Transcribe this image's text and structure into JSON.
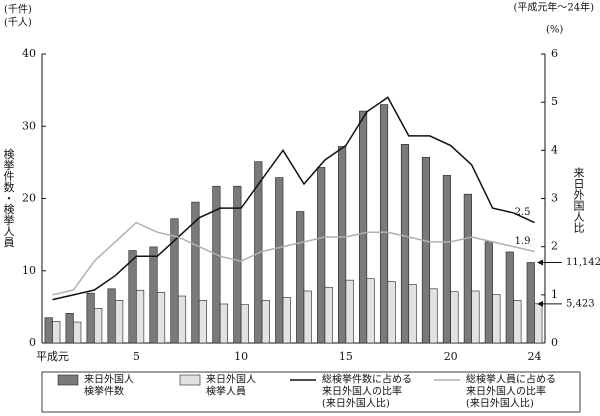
{
  "chart_data": {
    "type": "bar",
    "period_note": "(平成元年～24年)",
    "y_unit_labels": [
      "(千件)",
      "(千人)"
    ],
    "y2_unit_label": "(%)",
    "ylabel": "検挙件数・検挙人員",
    "y2label": "来日外国人比",
    "x": [
      1,
      2,
      3,
      4,
      5,
      6,
      7,
      8,
      9,
      10,
      11,
      12,
      13,
      14,
      15,
      16,
      17,
      18,
      19,
      20,
      21,
      22,
      23,
      24
    ],
    "xlim": [
      0.5,
      24.5
    ],
    "xticks": [
      {
        "value": 1,
        "label": "平成元"
      },
      5,
      10,
      15,
      20,
      24
    ],
    "ylim": [
      0,
      40
    ],
    "yticks": [
      0,
      10,
      20,
      30,
      40
    ],
    "y2lim": [
      0,
      6
    ],
    "y2ticks": [
      0,
      1,
      2,
      3,
      4,
      5,
      6
    ],
    "series": [
      {
        "name": [
          "来日外国人",
          "検挙件数"
        ],
        "type": "bar",
        "color": "#7a7a7a",
        "values": [
          3.5,
          4.1,
          6.9,
          7.5,
          12.8,
          13.3,
          17.2,
          19.5,
          21.7,
          21.7,
          25.1,
          22.9,
          18.2,
          24.3,
          27.2,
          32.1,
          33.0,
          27.5,
          25.7,
          23.2,
          20.6,
          14.0,
          12.6,
          11.142
        ]
      },
      {
        "name": [
          "来日外国人",
          "検挙人員"
        ],
        "type": "bar",
        "color": "#e2e2e2",
        "values": [
          3.0,
          2.9,
          4.8,
          5.9,
          7.3,
          7.0,
          6.5,
          5.9,
          5.4,
          5.3,
          5.9,
          6.3,
          7.2,
          7.7,
          8.7,
          8.9,
          8.5,
          8.1,
          7.5,
          7.1,
          7.2,
          6.7,
          5.9,
          5.423
        ]
      },
      {
        "name": [
          "総検挙件数に占める",
          "来日外国人の比率",
          "(来日外国人比)"
        ],
        "type": "line",
        "axis": "y2",
        "color": "#111111",
        "values": [
          0.9,
          1.0,
          1.1,
          1.4,
          1.8,
          1.8,
          2.2,
          2.6,
          2.8,
          2.8,
          3.4,
          4.0,
          3.3,
          3.8,
          4.1,
          4.8,
          5.1,
          4.3,
          4.3,
          4.1,
          3.7,
          2.8,
          2.7,
          2.5
        ]
      },
      {
        "name": [
          "総検挙人員に占める",
          "来日外国人の比率",
          "(来日外国人比)"
        ],
        "type": "line",
        "axis": "y2",
        "color": "#b0b0b0",
        "values": [
          1.0,
          1.1,
          1.7,
          2.1,
          2.5,
          2.3,
          2.2,
          2.0,
          1.8,
          1.7,
          1.9,
          2.0,
          2.1,
          2.2,
          2.2,
          2.3,
          2.3,
          2.2,
          2.1,
          2.1,
          2.2,
          2.1,
          2.0,
          1.9
        ]
      }
    ],
    "annotations": [
      {
        "series": 0,
        "index": 23,
        "value": 11.142,
        "label": "11,142"
      },
      {
        "series": 1,
        "index": 23,
        "value": 5.423,
        "label": "5,423"
      }
    ]
  }
}
